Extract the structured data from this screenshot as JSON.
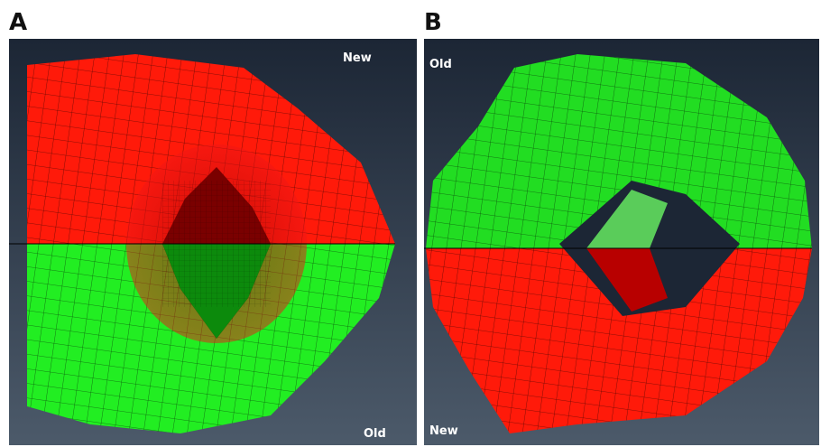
{
  "panels": [
    {
      "label": "A",
      "top_label": "New",
      "bottom_label": "Old"
    },
    {
      "label": "B",
      "top_label": "Old",
      "bottom_label": "New"
    }
  ]
}
